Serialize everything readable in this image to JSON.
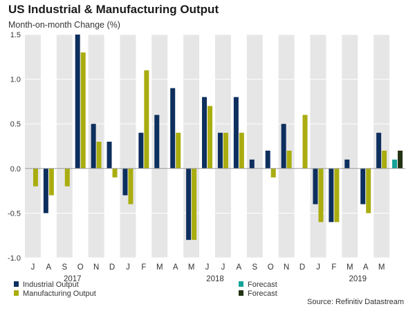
{
  "header": {
    "title": "US Industrial & Manufacturing Output",
    "subtitle": "Month-on-month Change (%)"
  },
  "footer": {
    "source": "Source: Refinitiv Datastream"
  },
  "colors": {
    "industrial": "#0d2f5e",
    "manufacturing": "#a9ad0f",
    "forecast_industrial": "#15a39a",
    "forecast_manufacturing": "#243313",
    "band": "#e6e6e6",
    "grid": "#ffffff",
    "zero_line": "#9a9a9a"
  },
  "chart_data": {
    "type": "bar",
    "title": "US Industrial & Manufacturing Output",
    "ylabel": "Month-on-month Change (%)",
    "xlabel": "",
    "ylim": [
      -1.0,
      1.5
    ],
    "yticks": [
      1.5,
      1.0,
      0.5,
      0.0,
      -0.5,
      -1.0
    ],
    "ytick_labels": [
      "1.5",
      "1.0",
      "0.5",
      "0.0",
      "-0.5",
      "-1.0"
    ],
    "grid": true,
    "categories": [
      "J",
      "A",
      "S",
      "O",
      "N",
      "D",
      "J",
      "F",
      "M",
      "A",
      "M",
      "J",
      "J",
      "A",
      "S",
      "O",
      "N",
      "D",
      "J",
      "F",
      "M",
      "A",
      "M",
      ""
    ],
    "year_labels": [
      {
        "label": "2017",
        "from_index": 0,
        "to_index": 5
      },
      {
        "label": "2018",
        "from_index": 6,
        "to_index": 17
      },
      {
        "label": "2019",
        "from_index": 18,
        "to_index": 23
      }
    ],
    "series": [
      {
        "name": "Industrial Output",
        "color_key": "industrial",
        "values": [
          0,
          -0.5,
          0,
          1.5,
          0.5,
          0.3,
          -0.3,
          0.4,
          0.6,
          0.9,
          -0.8,
          0.8,
          0.4,
          0.8,
          0.1,
          0.2,
          0.5,
          0,
          -0.4,
          -0.6,
          0.1,
          -0.4,
          0.4,
          null
        ]
      },
      {
        "name": "Manufacturing Output",
        "color_key": "manufacturing",
        "values": [
          -0.2,
          -0.3,
          -0.2,
          1.3,
          0.3,
          -0.1,
          -0.4,
          1.1,
          0,
          0.4,
          -0.8,
          0.7,
          0.4,
          0.4,
          0,
          -0.1,
          0.2,
          0.6,
          -0.6,
          -0.6,
          0,
          -0.5,
          0.2,
          null
        ]
      },
      {
        "name": "Forecast",
        "color_key": "forecast_industrial",
        "values": [
          null,
          null,
          null,
          null,
          null,
          null,
          null,
          null,
          null,
          null,
          null,
          null,
          null,
          null,
          null,
          null,
          null,
          null,
          null,
          null,
          null,
          null,
          null,
          0.1
        ]
      },
      {
        "name": "Forecast",
        "color_key": "forecast_manufacturing",
        "values": [
          null,
          null,
          null,
          null,
          null,
          null,
          null,
          null,
          null,
          null,
          null,
          null,
          null,
          null,
          null,
          null,
          null,
          null,
          null,
          null,
          null,
          null,
          null,
          0.2
        ]
      }
    ],
    "legend": {
      "placement": "bottom",
      "entries": [
        {
          "label": "Industrial Output",
          "color_key": "industrial"
        },
        {
          "label": "Manufacturing Output",
          "color_key": "manufacturing"
        },
        {
          "label": "Forecast",
          "color_key": "forecast_industrial"
        },
        {
          "label": "Forecast",
          "color_key": "forecast_manufacturing"
        }
      ]
    }
  }
}
